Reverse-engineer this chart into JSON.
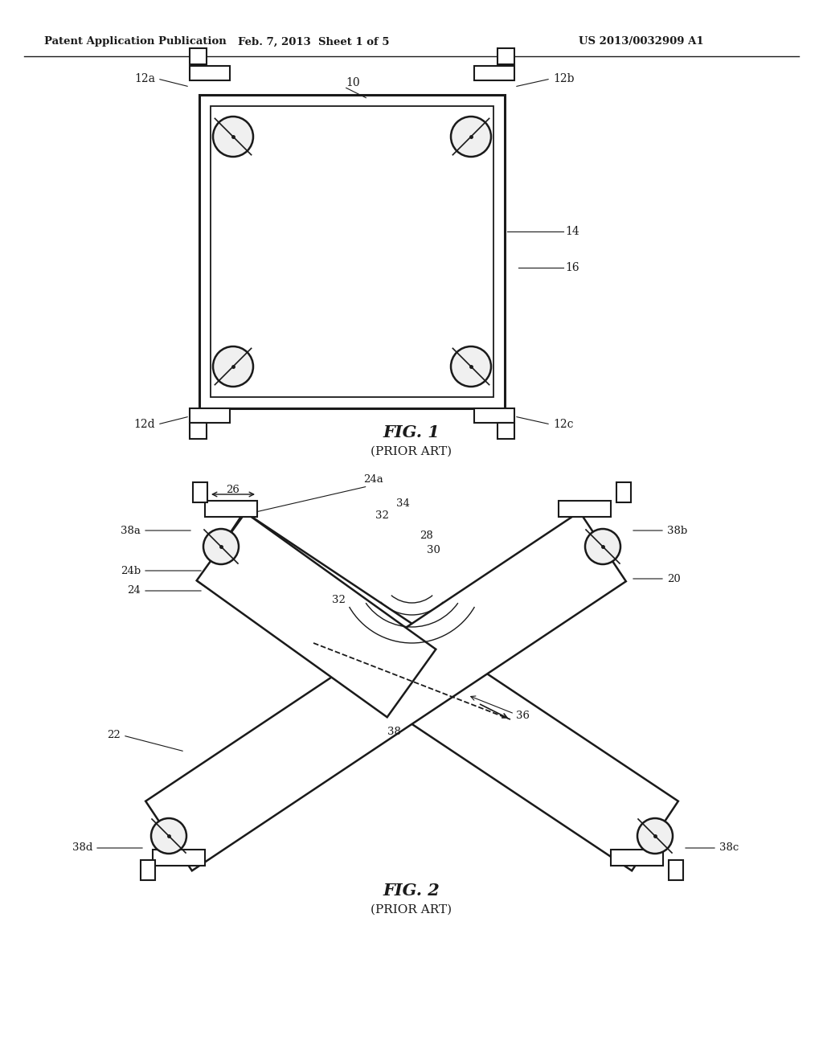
{
  "header_left": "Patent Application Publication",
  "header_mid": "Feb. 7, 2013  Sheet 1 of 5",
  "header_right": "US 2013/0032909 A1",
  "fig1_title": "FIG. 1",
  "fig1_subtitle": "(PRIOR ART)",
  "fig2_title": "FIG. 2",
  "fig2_subtitle": "(PRIOR ART)",
  "bg_color": "#ffffff",
  "line_color": "#1a1a1a"
}
